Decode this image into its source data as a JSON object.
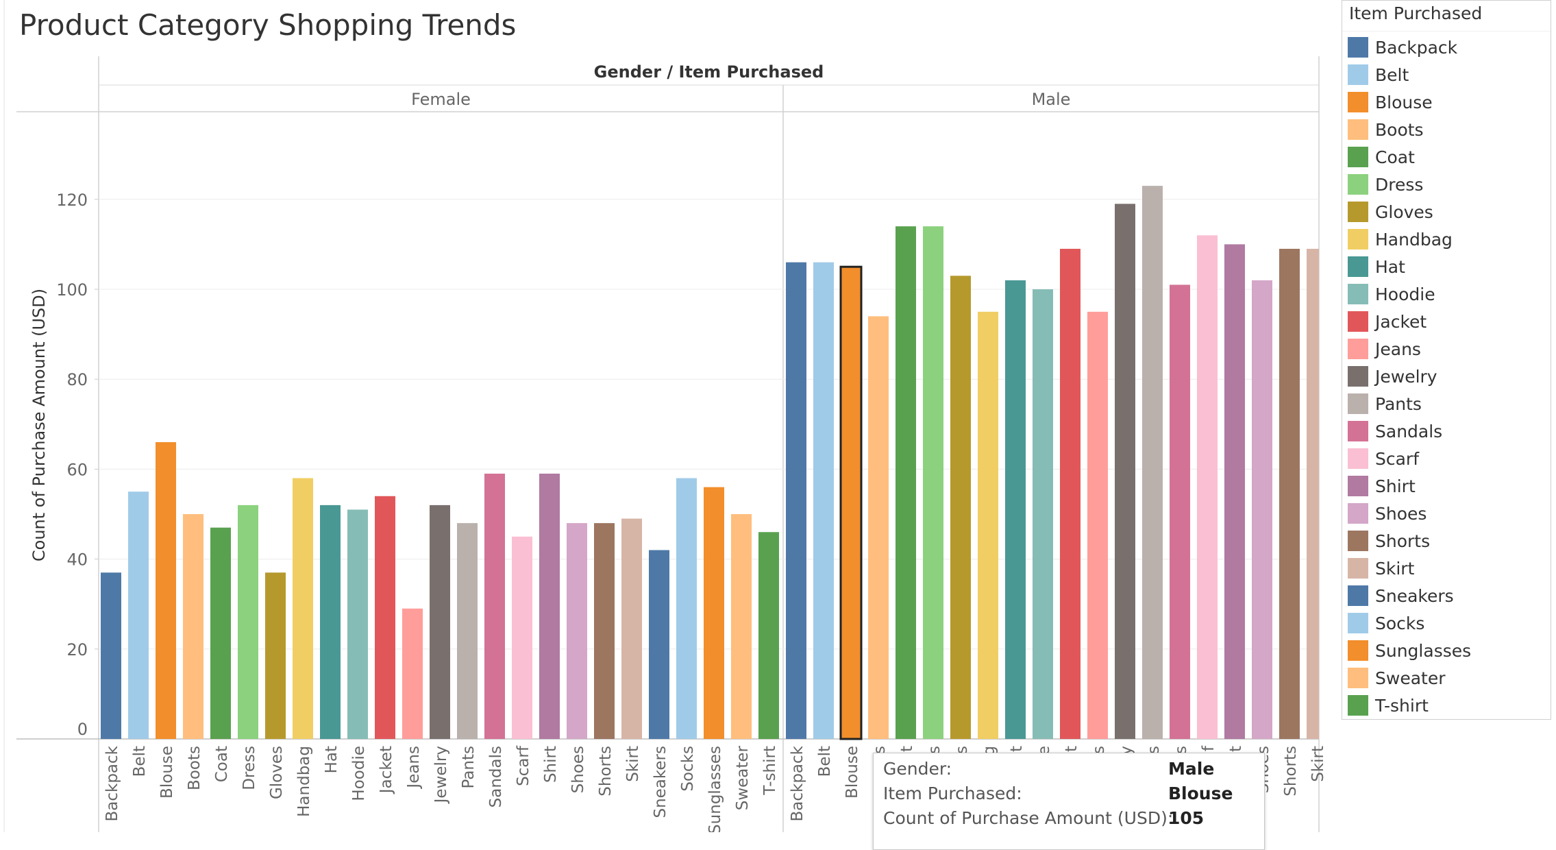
{
  "title": "Product Category Shopping Trends",
  "chart_data": {
    "type": "bar",
    "header": "Gender / Item Purchased",
    "ylabel": "Count of Purchase Amount (USD)",
    "ylim": [
      0,
      130
    ],
    "yticks": [
      0,
      20,
      40,
      60,
      80,
      100,
      120
    ],
    "grid": true,
    "legend_position": "right",
    "panels": [
      {
        "name": "Female",
        "categories": [
          "Backpack",
          "Belt",
          "Blouse",
          "Boots",
          "Coat",
          "Dress",
          "Gloves",
          "Handbag",
          "Hat",
          "Hoodie",
          "Jacket",
          "Jeans",
          "Jewelry",
          "Pants",
          "Sandals",
          "Scarf",
          "Shirt",
          "Shoes",
          "Shorts",
          "Skirt",
          "Sneakers",
          "Socks",
          "Sunglasses",
          "Sweater",
          "T-shirt"
        ],
        "values": [
          37,
          55,
          66,
          50,
          47,
          52,
          37,
          58,
          52,
          51,
          54,
          29,
          52,
          48,
          59,
          45,
          59,
          48,
          48,
          49,
          42,
          58,
          56,
          50,
          46
        ],
        "tick_labels": [
          "Backpack",
          "Belt",
          "Blouse",
          "Boots",
          "Coat",
          "Dress",
          "Gloves",
          "Handbag",
          "Hat",
          "Hoodie",
          "Jacket",
          "Jeans",
          "Jewelry",
          "Pants",
          "Sandals",
          "Scarf",
          "Shirt",
          "Shoes",
          "Shorts",
          "Skirt",
          "Sneakers",
          "Socks",
          "Sunglasses",
          "Sweater",
          "T-shirt"
        ]
      },
      {
        "name": "Male",
        "categories": [
          "Backpack",
          "Belt",
          "Blouse",
          "Boots",
          "Coat",
          "Dress",
          "Gloves",
          "Handbag",
          "Hat",
          "Hoodie",
          "Jacket",
          "Jeans",
          "Jewelry",
          "Pants",
          "Sandals",
          "Scarf",
          "Shirt",
          "Shoes",
          "Shorts",
          "Skirt"
        ],
        "values": [
          106,
          106,
          105,
          94,
          114,
          114,
          103,
          95,
          102,
          100,
          109,
          95,
          119,
          123,
          101,
          112,
          110,
          102,
          109,
          109
        ],
        "tick_labels": [
          "Backpack",
          "Belt",
          "Blouse",
          "s",
          "t",
          "s",
          "s",
          "g",
          "t",
          "e",
          "t",
          "s",
          "y",
          "s",
          "s",
          "f",
          "t",
          "Shoes",
          "Shorts",
          "Skirt"
        ],
        "value_labels": [
          "106",
          "106",
          "105",
          "94",
          "114",
          "114",
          "103",
          "95",
          "102",
          "100",
          "109",
          "95",
          "119",
          "123",
          "101",
          "112",
          "110",
          "102",
          "109",
          "109"
        ],
        "highlighted_index": 2
      }
    ]
  },
  "legend": {
    "title": "Item Purchased",
    "items": [
      {
        "label": "Backpack",
        "color": "#4e79a7"
      },
      {
        "label": "Belt",
        "color": "#a0cbe8"
      },
      {
        "label": "Blouse",
        "color": "#f28e2b"
      },
      {
        "label": "Boots",
        "color": "#ffbe7d"
      },
      {
        "label": "Coat",
        "color": "#59a14f"
      },
      {
        "label": "Dress",
        "color": "#8cd17d"
      },
      {
        "label": "Gloves",
        "color": "#b6992d"
      },
      {
        "label": "Handbag",
        "color": "#f1ce63"
      },
      {
        "label": "Hat",
        "color": "#499894"
      },
      {
        "label": "Hoodie",
        "color": "#86bcb6"
      },
      {
        "label": "Jacket",
        "color": "#e15759"
      },
      {
        "label": "Jeans",
        "color": "#ff9d9a"
      },
      {
        "label": "Jewelry",
        "color": "#79706e"
      },
      {
        "label": "Pants",
        "color": "#bab0ac"
      },
      {
        "label": "Sandals",
        "color": "#d37295"
      },
      {
        "label": "Scarf",
        "color": "#fabfd2"
      },
      {
        "label": "Shirt",
        "color": "#b07aa1"
      },
      {
        "label": "Shoes",
        "color": "#d4a6c8"
      },
      {
        "label": "Shorts",
        "color": "#9d7660"
      },
      {
        "label": "Skirt",
        "color": "#d7b5a6"
      },
      {
        "label": "Sneakers",
        "color": "#4e79a7"
      },
      {
        "label": "Socks",
        "color": "#a0cbe8"
      },
      {
        "label": "Sunglasses",
        "color": "#f28e2b"
      },
      {
        "label": "Sweater",
        "color": "#ffbe7d"
      },
      {
        "label": "T-shirt",
        "color": "#59a14f"
      }
    ]
  },
  "tooltip": {
    "rows": [
      {
        "key": "Gender:",
        "value": "Male"
      },
      {
        "key": "Item Purchased:",
        "value": "Blouse"
      },
      {
        "key": "Count of Purchase Amount (USD):",
        "value": "105"
      }
    ]
  }
}
